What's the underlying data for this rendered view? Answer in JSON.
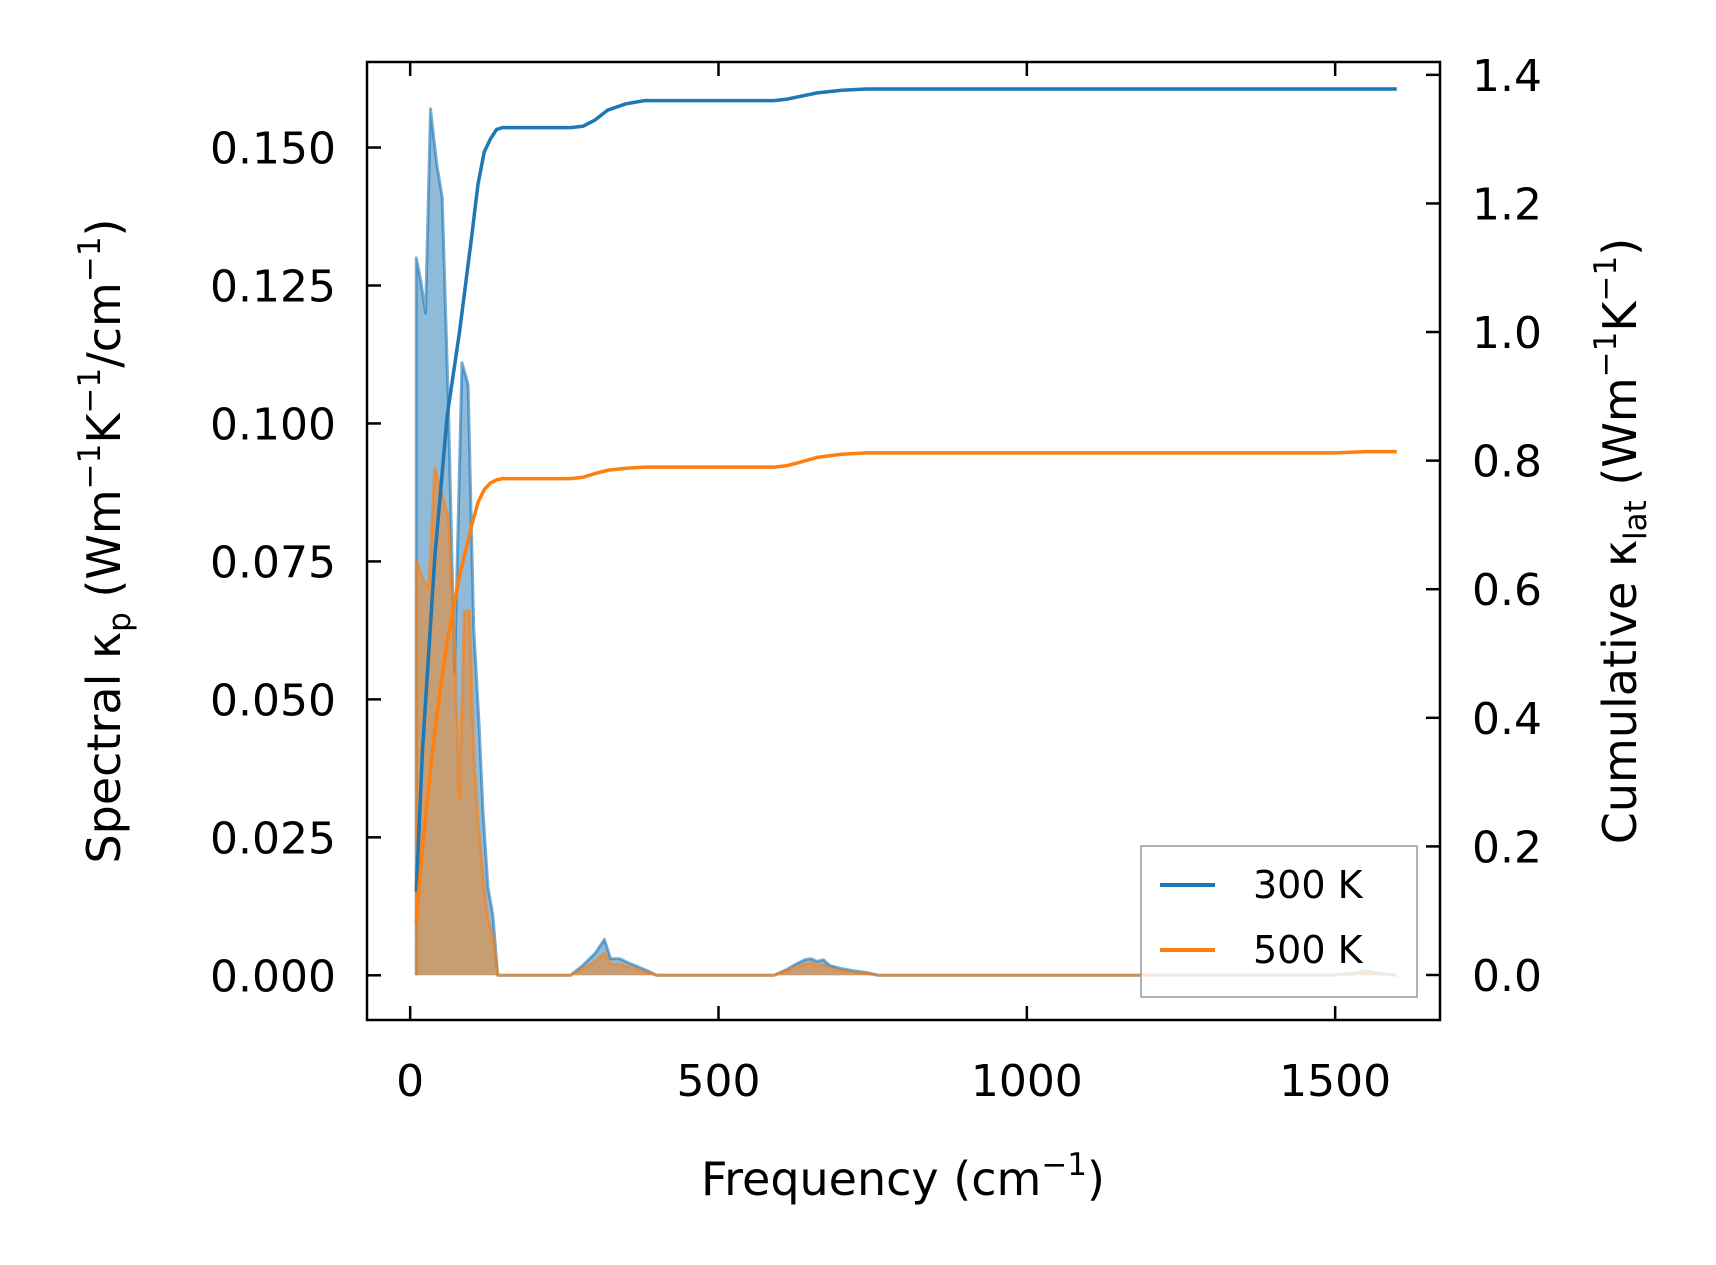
{
  "chart_data": {
    "type": "area",
    "x_label": {
      "text": "Frequency (cm",
      "sup": "−1",
      "suffix": ")"
    },
    "y_left_label": {
      "pre": "Spectral κ",
      "sub": "p",
      "mid1": " (Wm",
      "sup1": "−1",
      "mid2": "K",
      "sup2": "−1",
      "post": "/cm",
      "sup3": "−1",
      "end": ")"
    },
    "y_right_label": {
      "pre": "Cumulative κ",
      "sub": "lat",
      "mid1": " (Wm",
      "sup1": "−1",
      "mid2": "K",
      "sup2": "−1",
      "end": ")"
    },
    "xlim": [
      -70,
      1670
    ],
    "ylim_left": [
      -0.0081,
      0.1655
    ],
    "ylim_right": [
      -0.07,
      1.42
    ],
    "x_ticks": [
      0,
      500,
      1000,
      1500
    ],
    "x_tick_labels": [
      "0",
      "500",
      "1000",
      "1500"
    ],
    "y_left_ticks": [
      0,
      0.025,
      0.05,
      0.075,
      0.1,
      0.125,
      0.15
    ],
    "y_left_tick_labels": [
      "0.000",
      "0.025",
      "0.050",
      "0.075",
      "0.100",
      "0.125",
      "0.150"
    ],
    "y_right_ticks": [
      0,
      0.2,
      0.4,
      0.6,
      0.8,
      1.0,
      1.2,
      1.4
    ],
    "y_right_tick_labels": [
      "0.0",
      "0.2",
      "0.4",
      "0.6",
      "0.8",
      "1.0",
      "1.2",
      "1.4"
    ],
    "legend_position": "bottom-right",
    "colors": {
      "300 K": "#1f77b4",
      "500 K": "#ff7f0e"
    },
    "spectral": [
      {
        "name": "300 K",
        "x": [
          10,
          17,
          25,
          33,
          43,
          52,
          62,
          72,
          84,
          94,
          103,
          112,
          118,
          126,
          134,
          142,
          150,
          157,
          170,
          260,
          280,
          300,
          315,
          325,
          340,
          355,
          370,
          385,
          400,
          590,
          610,
          625,
          640,
          650,
          660,
          670,
          680,
          700,
          720,
          740,
          760,
          1490,
          1530,
          1550,
          1570,
          1600
        ],
        "y": [
          0.13,
          0.126,
          0.12,
          0.157,
          0.147,
          0.141,
          0.103,
          0.055,
          0.111,
          0.107,
          0.063,
          0.045,
          0.03,
          0.016,
          0.011,
          0.0,
          0.0,
          0.0,
          0.0,
          0.0,
          0.0018,
          0.004,
          0.0065,
          0.003,
          0.003,
          0.0022,
          0.0015,
          0.0008,
          0.0,
          0.0,
          0.001,
          0.002,
          0.0028,
          0.003,
          0.0025,
          0.0028,
          0.0018,
          0.0012,
          0.0008,
          0.0005,
          0.0,
          0.0,
          0.0004,
          0.0008,
          0.0004,
          0.0
        ]
      },
      {
        "name": "500 K",
        "x": [
          10,
          20,
          30,
          40,
          52,
          62,
          72,
          80,
          88,
          96,
          103,
          110,
          118,
          126,
          134,
          142,
          150,
          157,
          170,
          260,
          280,
          300,
          315,
          325,
          340,
          355,
          370,
          385,
          400,
          590,
          610,
          625,
          640,
          650,
          660,
          670,
          680,
          700,
          720,
          740,
          760,
          1490,
          1530,
          1550,
          1570,
          1600
        ],
        "y": [
          0.075,
          0.072,
          0.07,
          0.092,
          0.087,
          0.083,
          0.06,
          0.032,
          0.066,
          0.066,
          0.04,
          0.028,
          0.018,
          0.01,
          0.007,
          0.0,
          0.0,
          0.0,
          0.0,
          0.0,
          0.0012,
          0.0025,
          0.004,
          0.002,
          0.002,
          0.0014,
          0.001,
          0.0005,
          0.0,
          0.0,
          0.0008,
          0.0015,
          0.002,
          0.0022,
          0.0018,
          0.002,
          0.0012,
          0.0008,
          0.0005,
          0.0003,
          0.0,
          0.0,
          0.0002,
          0.0005,
          0.0002,
          0.0
        ]
      }
    ],
    "cumulative": [
      {
        "name": "300 K",
        "x": [
          10,
          20,
          40,
          60,
          80,
          100,
          110,
          120,
          130,
          140,
          150,
          260,
          280,
          300,
          320,
          350,
          380,
          400,
          590,
          610,
          630,
          660,
          700,
          740,
          800,
          1000,
          1200,
          1400,
          1600
        ],
        "y": [
          0.13,
          0.35,
          0.65,
          0.87,
          1.0,
          1.15,
          1.23,
          1.28,
          1.3,
          1.315,
          1.318,
          1.318,
          1.32,
          1.33,
          1.345,
          1.355,
          1.36,
          1.36,
          1.36,
          1.362,
          1.366,
          1.372,
          1.376,
          1.378,
          1.378,
          1.378,
          1.378,
          1.378,
          1.378
        ]
      },
      {
        "name": "500 K",
        "x": [
          10,
          20,
          40,
          60,
          80,
          100,
          110,
          120,
          130,
          140,
          150,
          260,
          280,
          300,
          320,
          350,
          380,
          400,
          590,
          610,
          630,
          660,
          700,
          740,
          800,
          1000,
          1200,
          1400,
          1500,
          1550,
          1600
        ],
        "y": [
          0.08,
          0.2,
          0.38,
          0.52,
          0.62,
          0.7,
          0.735,
          0.755,
          0.765,
          0.77,
          0.772,
          0.772,
          0.774,
          0.78,
          0.785,
          0.788,
          0.79,
          0.79,
          0.79,
          0.792,
          0.797,
          0.805,
          0.81,
          0.812,
          0.812,
          0.812,
          0.812,
          0.812,
          0.812,
          0.814,
          0.814
        ]
      }
    ]
  }
}
